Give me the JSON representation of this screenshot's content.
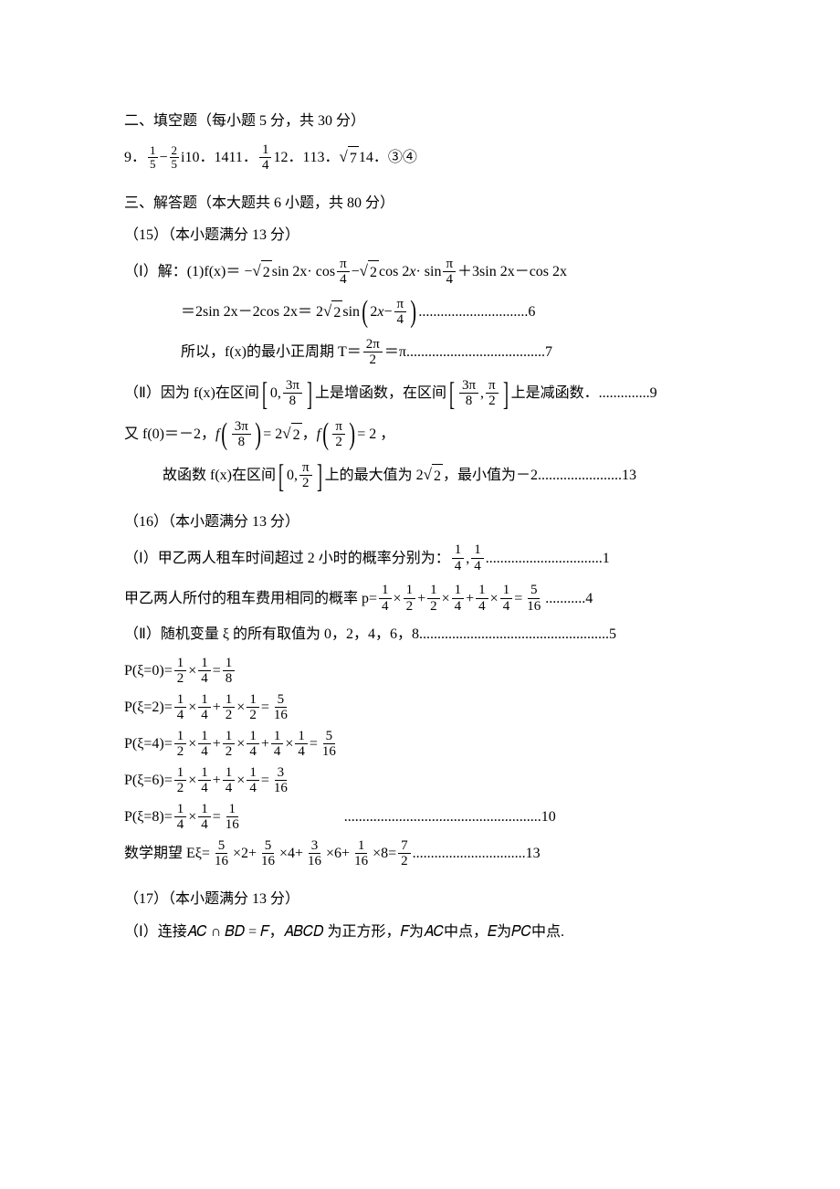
{
  "section2": {
    "heading": "二、填空题（每小题 5 分，共 30 分）",
    "q9_prefix": "9．",
    "q9_frac1_num": "1",
    "q9_frac1_den": "5",
    "q9_minus": " − ",
    "q9_frac2_num": "2",
    "q9_frac2_den": "5",
    "q9_i": "i",
    "q10": "10．14",
    "q11_prefix": "11．",
    "q11_num": "1",
    "q11_den": "4",
    "q12": " 12．1",
    "q13_prefix": "13．",
    "q13_arg": "7",
    "q14": " 14．③④"
  },
  "section3": {
    "heading": "三、解答题（本大题共 6 小题，共 80 分）"
  },
  "p15": {
    "title": "（15）（本小题满分 13 分）",
    "l1a": "（Ⅰ）解：(1)f(x)＝ −",
    "l1_s2": "2",
    "l1b": " sin 2x· cos",
    "l1_pi4_n": "π",
    "l1_pi4_d": "4",
    "l1c": " − ",
    "l1d": "cos 2",
    "l1_x": "x",
    "l1e": " · sin",
    "l1f": " ＋3sin 2x－cos 2x",
    "l2a": "＝2sin 2x－2cos 2x＝ 2",
    "l2b": "sin",
    "l2c": "2",
    "l2_x": "x",
    "l2d": " − ",
    "l2_dots": "..............................6",
    "l3a": "所以，f(x)的最小正周期 T＝",
    "l3_num": "2π",
    "l3_den": "2",
    "l3b": "＝π",
    "l3_dots": "......................................7",
    "l4a": "（Ⅱ）因为 f(x)在区间",
    "l4_zero": "0,",
    "l4_num": "3π",
    "l4_den": "8",
    "l4b": "上是增函数，在区间",
    "l4_num2": "3π",
    "l4_den2": "8",
    "l4_comma": ",",
    "l4_num3": "π",
    "l4_den3": "2",
    "l4c": "上是减函数．",
    "l4_dots": "..............9",
    "l5a": "又 f(0)＝－2，",
    "l5_f": "f",
    "l5_eq1": " = 2",
    "l5_comma": " ， ",
    "l5_eq2": " = 2 ，",
    "l6a": "故函数 f(x)在区间",
    "l6b": "上的最大值为 2",
    "l6c": " ，最小值为－2",
    "l6_dots": ".......................13"
  },
  "p16": {
    "title": "（16）（本小题满分 13 分）",
    "l1a": "（Ⅰ）甲乙两人租车时间超过 2 小时的概率分别为：",
    "l1_n1": "1",
    "l1_d1": "4",
    "l1_comma": ",",
    "l1_n2": "1",
    "l1_d2": "4",
    "l1_dots": "................................1",
    "l2a": "甲乙两人所付的租车费用相同的概率 p=",
    "l2_seq_n": [
      "1",
      "1",
      "1",
      "1",
      "1",
      "1",
      "5"
    ],
    "l2_seq_d": [
      "4",
      "2",
      "2",
      "4",
      "4",
      "4",
      "16"
    ],
    "l2_ops": [
      "×",
      "+",
      "×",
      "+",
      "×",
      "="
    ],
    "l2_dots": "...........4",
    "l3a": "（Ⅱ）随机变量 ξ 的所有取值为 0，2，4，6，8",
    "l3_dots": "....................................................5",
    "p0_label": "P(ξ=0)=",
    "p0_n": [
      "1",
      "1",
      "1"
    ],
    "p0_d": [
      "2",
      "4",
      "8"
    ],
    "p0_ops": [
      "×",
      "="
    ],
    "p2_label": "P(ξ=2)=",
    "p2_n": [
      "1",
      "1",
      "1",
      "1",
      "5"
    ],
    "p2_d": [
      "4",
      "4",
      "2",
      "2",
      "16"
    ],
    "p2_ops": [
      "×",
      "+",
      "×",
      "="
    ],
    "p4_label": "P(ξ=4)=",
    "p4_n": [
      "1",
      "1",
      "1",
      "1",
      "1",
      "1",
      "5"
    ],
    "p4_d": [
      "2",
      "4",
      "2",
      "4",
      "4",
      "4",
      "16"
    ],
    "p4_ops": [
      "×",
      "+",
      "×",
      "+",
      "×",
      "="
    ],
    "p6_label": "P(ξ=6)=",
    "p6_n": [
      "1",
      "1",
      "1",
      "1",
      "3"
    ],
    "p6_d": [
      "2",
      "4",
      "4",
      "4",
      "16"
    ],
    "p6_ops": [
      "×",
      "+",
      "×",
      "="
    ],
    "p8_label": "P(ξ=8)=",
    "p8_n": [
      "1",
      "1",
      "1"
    ],
    "p8_d": [
      "4",
      "4",
      "16"
    ],
    "p8_ops": [
      "×",
      "="
    ],
    "p8_dots": "......................................................10",
    "exp_label": "数学期望 Eξ=",
    "exp_n": [
      "5",
      "5",
      "3",
      "1",
      "7"
    ],
    "exp_d": [
      "16",
      "16",
      "16",
      "16",
      "2"
    ],
    "exp_mid": [
      "×2+",
      "×4+",
      "×6+",
      "×8="
    ],
    "exp_dots": " ...............................13"
  },
  "p17": {
    "title": "（17）（本小题满分 13 分）",
    "l1": "（Ⅰ）连接𝐴𝐶 ∩ 𝐵𝐷 = 𝐹，𝐴𝐵𝐶𝐷 为正方形，𝐹为𝐴𝐶中点，𝐸为𝑃𝐶中点."
  }
}
